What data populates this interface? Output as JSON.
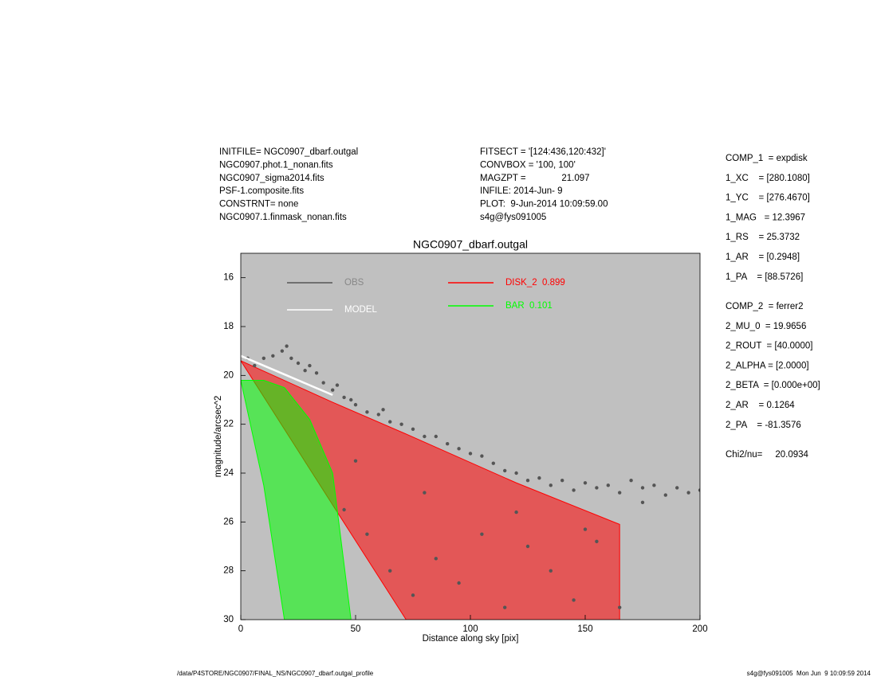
{
  "chart_data": {
    "type": "scatter",
    "title": "NGC0907_dbarf.outgal",
    "x_label": "Distance along sky [pix]",
    "y_label": "magnitude/arcsec^2",
    "header_left": [
      "INITFILE= NGC0907_dbarf.outgal",
      "NGC0907.phot.1_nonan.fits",
      "NGC0907_sigma2014.fits",
      "PSF-1.composite.fits",
      "CONSTRNT= none",
      "NGC0907.1.finmask_nonan.fits"
    ],
    "header_middle": [
      "FITSECT = '[124:436,120:432]'",
      "CONVBOX = '100, 100'",
      "MAGZPT =              21.097",
      "INFILE: 2014-Jun- 9",
      "PLOT:  9-Jun-2014 10:09:59.00",
      "s4g@fys091005"
    ],
    "params": [
      "COMP_1  = expdisk",
      "1_XC    = [280.1080]",
      "1_YC    = [276.4670]",
      "1_MAG   = 12.3967",
      "1_RS    = 25.3732",
      "1_AR    = [0.2948]",
      "1_PA    = [88.5726]",
      "COMP_2  = ferrer2",
      "2_MU_0  = 19.9656",
      "2_ROUT  = [40.0000]",
      "2_ALPHA = [2.0000]",
      "2_BETA  = [0.000e+00]",
      "2_AR    = 0.1264",
      "2_PA    = -81.3576",
      "Chi2/nu=     20.0934"
    ],
    "footer_left": "/data/P4STORE/NGC0907/FINAL_NS/NGC0907_dbarf.outgal_profile",
    "footer_right": "s4g@fys091005  Mon Jun  9 10:09:59 2014",
    "background": "#c0c0c0",
    "xlim": [
      0,
      200
    ],
    "xticks": [
      0,
      50,
      100,
      150,
      200
    ],
    "ylim": [
      30,
      15
    ],
    "yticks": [
      16,
      18,
      20,
      22,
      24,
      26,
      28,
      30
    ],
    "series": [
      {
        "name": "OBS",
        "color": "#555555",
        "kind": "scatter",
        "x": [
          3,
          6,
          10,
          14,
          18,
          20,
          22,
          25,
          28,
          30,
          33,
          36,
          40,
          42,
          45,
          48,
          50,
          55,
          60,
          62,
          65,
          70,
          75,
          80,
          85,
          90,
          95,
          100,
          105,
          110,
          115,
          120,
          125,
          130,
          135,
          140,
          145,
          150,
          155,
          160,
          165,
          170,
          175,
          180,
          185,
          190,
          195,
          200,
          45,
          55,
          65,
          75,
          85,
          95,
          105,
          115,
          125,
          135,
          145,
          155,
          165,
          50,
          80,
          120,
          150,
          175
        ],
        "values": [
          19.3,
          19.6,
          19.3,
          19.2,
          19.0,
          18.8,
          19.3,
          19.5,
          19.8,
          19.6,
          19.9,
          20.3,
          20.6,
          20.4,
          20.9,
          21.0,
          21.2,
          21.5,
          21.6,
          21.4,
          21.9,
          22.0,
          22.2,
          22.5,
          22.5,
          22.8,
          23.0,
          23.2,
          23.3,
          23.6,
          23.9,
          24.0,
          24.3,
          24.2,
          24.5,
          24.3,
          24.7,
          24.4,
          24.6,
          24.5,
          24.8,
          24.3,
          24.6,
          24.5,
          24.9,
          24.6,
          24.8,
          24.7,
          25.5,
          26.5,
          28,
          29,
          27.5,
          28.5,
          26.5,
          29.5,
          27,
          28,
          29.2,
          26.8,
          29.5,
          23.5,
          24.8,
          25.6,
          26.3,
          25.2
        ]
      },
      {
        "name": "MODEL",
        "color": "#ffffff",
        "kind": "line",
        "x": [
          0,
          10,
          20,
          30,
          40
        ],
        "values": [
          19.2,
          19.6,
          20.0,
          20.4,
          20.8
        ]
      },
      {
        "name": "DISK_2  0.899",
        "color": "#ff0000",
        "kind": "area",
        "x": [
          0,
          40,
          72,
          120,
          165
        ],
        "values": [
          19.4,
          21.1,
          22.4,
          24.4,
          26.1
        ],
        "lower": [
          19.4,
          25.3,
          30,
          30,
          30
        ]
      },
      {
        "name": "BAR  0.101",
        "color": "#00ff00",
        "kind": "area",
        "x": [
          0,
          10,
          19,
          30,
          40,
          48
        ],
        "values": [
          20.2,
          20.2,
          20.5,
          21.8,
          24,
          30
        ],
        "lower": [
          20.2,
          24.5,
          30,
          30,
          30,
          30
        ]
      }
    ]
  }
}
